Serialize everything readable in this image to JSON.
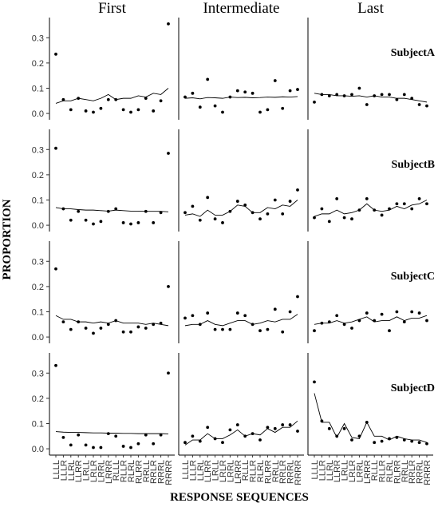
{
  "chart_data": {
    "type": "line",
    "xlabel": "RESPONSE SEQUENCES",
    "ylabel": "PROPORTION",
    "stages": [
      "First",
      "Intermediate",
      "Last"
    ],
    "categories": [
      "LLLL",
      "LLLR",
      "LLRL",
      "LLRR",
      "LRLL",
      "LRLR",
      "LRRL",
      "LRRR",
      "RLLL",
      "RLLR",
      "RLRL",
      "RLRR",
      "RRLL",
      "RRLR",
      "RRRL",
      "RRRR"
    ],
    "ylim": [
      -0.025,
      0.38
    ],
    "yticks": [
      {
        "value": 0,
        "label": "0.0"
      },
      0.1,
      0.2,
      0.3
    ],
    "point_color": "#000000",
    "line_color": "#000000",
    "subjects": [
      {
        "name": "SubjectA",
        "stages": [
          {
            "observed": [
              0.235,
              0.055,
              0.015,
              0.06,
              0.01,
              0.005,
              0.02,
              0.055,
              0.055,
              0.015,
              0.005,
              0.015,
              0.06,
              0.01,
              0.05,
              0.355
            ],
            "predicted": [
              0.04,
              0.05,
              0.05,
              0.06,
              0.055,
              0.05,
              0.06,
              0.075,
              0.055,
              0.06,
              0.06,
              0.07,
              0.065,
              0.08,
              0.075,
              0.1
            ]
          },
          {
            "observed": [
              0.065,
              0.08,
              0.025,
              0.135,
              0.03,
              0.005,
              0.065,
              0.09,
              0.085,
              0.08,
              0.005,
              0.015,
              0.13,
              0.02,
              0.09,
              0.095
            ],
            "predicted": [
              0.06,
              0.062,
              0.058,
              0.063,
              0.062,
              0.06,
              0.065,
              0.063,
              0.064,
              0.062,
              0.063,
              0.065,
              0.064,
              0.066,
              0.065,
              0.067
            ]
          },
          {
            "observed": [
              0.045,
              0.075,
              0.07,
              0.075,
              0.07,
              0.075,
              0.1,
              0.035,
              0.07,
              0.075,
              0.075,
              0.055,
              0.075,
              0.06,
              0.035,
              0.03
            ],
            "predicted": [
              0.08,
              0.075,
              0.075,
              0.07,
              0.07,
              0.068,
              0.07,
              0.065,
              0.07,
              0.065,
              0.065,
              0.06,
              0.06,
              0.055,
              0.05,
              0.045
            ]
          }
        ]
      },
      {
        "name": "SubjectB",
        "stages": [
          {
            "observed": [
              0.305,
              0.065,
              0.02,
              0.055,
              0.02,
              0.005,
              0.015,
              0.055,
              0.065,
              0.01,
              0.005,
              0.01,
              0.055,
              0.01,
              0.05,
              0.285
            ],
            "predicted": [
              0.07,
              0.065,
              0.065,
              0.062,
              0.06,
              0.06,
              0.058,
              0.056,
              0.06,
              0.058,
              0.056,
              0.056,
              0.055,
              0.055,
              0.055,
              0.053
            ]
          },
          {
            "observed": [
              0.05,
              0.075,
              0.02,
              0.11,
              0.025,
              0.01,
              0.055,
              0.095,
              0.08,
              0.05,
              0.025,
              0.045,
              0.1,
              0.045,
              0.095,
              0.14
            ],
            "predicted": [
              0.04,
              0.045,
              0.035,
              0.06,
              0.04,
              0.04,
              0.055,
              0.08,
              0.075,
              0.05,
              0.05,
              0.07,
              0.065,
              0.08,
              0.075,
              0.1
            ]
          },
          {
            "observed": [
              0.03,
              0.065,
              0.015,
              0.105,
              0.03,
              0.025,
              0.06,
              0.105,
              0.06,
              0.04,
              0.065,
              0.085,
              0.085,
              0.065,
              0.105,
              0.085
            ],
            "predicted": [
              0.035,
              0.045,
              0.045,
              0.06,
              0.045,
              0.05,
              0.06,
              0.085,
              0.06,
              0.055,
              0.06,
              0.075,
              0.065,
              0.08,
              0.085,
              0.1
            ]
          }
        ]
      },
      {
        "name": "SubjectC",
        "stages": [
          {
            "observed": [
              0.27,
              0.06,
              0.03,
              0.06,
              0.035,
              0.015,
              0.035,
              0.05,
              0.065,
              0.02,
              0.02,
              0.04,
              0.035,
              0.05,
              0.055,
              0.2
            ],
            "predicted": [
              0.085,
              0.07,
              0.07,
              0.06,
              0.06,
              0.055,
              0.06,
              0.055,
              0.065,
              0.055,
              0.055,
              0.055,
              0.05,
              0.055,
              0.05,
              0.045
            ]
          },
          {
            "observed": [
              0.075,
              0.085,
              0.05,
              0.095,
              0.03,
              0.03,
              0.03,
              0.095,
              0.085,
              0.05,
              0.025,
              0.03,
              0.11,
              0.02,
              0.1,
              0.16
            ],
            "predicted": [
              0.045,
              0.05,
              0.05,
              0.065,
              0.05,
              0.045,
              0.055,
              0.065,
              0.065,
              0.05,
              0.055,
              0.065,
              0.06,
              0.07,
              0.07,
              0.09
            ]
          },
          {
            "observed": [
              0.025,
              0.055,
              0.06,
              0.085,
              0.05,
              0.035,
              0.065,
              0.095,
              0.065,
              0.09,
              0.025,
              0.1,
              0.06,
              0.1,
              0.095,
              0.065
            ],
            "predicted": [
              0.05,
              0.055,
              0.055,
              0.065,
              0.055,
              0.06,
              0.07,
              0.08,
              0.06,
              0.065,
              0.065,
              0.08,
              0.065,
              0.075,
              0.075,
              0.085
            ]
          }
        ]
      },
      {
        "name": "SubjectD",
        "stages": [
          {
            "observed": [
              0.33,
              0.045,
              0.015,
              0.055,
              0.015,
              0.005,
              0.005,
              0.06,
              0.05,
              0.01,
              0.005,
              0.02,
              0.055,
              0.02,
              0.055,
              0.3
            ],
            "predicted": [
              0.068,
              0.066,
              0.065,
              0.065,
              0.064,
              0.063,
              0.063,
              0.062,
              0.062,
              0.061,
              0.061,
              0.06,
              0.06,
              0.06,
              0.06,
              0.059
            ]
          },
          {
            "observed": [
              0.025,
              0.05,
              0.03,
              0.085,
              0.04,
              0.025,
              0.075,
              0.095,
              0.05,
              0.06,
              0.035,
              0.085,
              0.08,
              0.095,
              0.095,
              0.07
            ],
            "predicted": [
              0.015,
              0.035,
              0.035,
              0.06,
              0.04,
              0.04,
              0.055,
              0.075,
              0.05,
              0.06,
              0.055,
              0.08,
              0.065,
              0.085,
              0.085,
              0.11
            ]
          },
          {
            "observed": [
              0.265,
              0.11,
              0.08,
              0.05,
              0.08,
              0.035,
              0.05,
              0.105,
              0.025,
              0.03,
              0.04,
              0.045,
              0.035,
              0.03,
              0.025,
              0.02
            ],
            "predicted": [
              0.22,
              0.105,
              0.105,
              0.045,
              0.1,
              0.045,
              0.04,
              0.105,
              0.05,
              0.05,
              0.035,
              0.05,
              0.04,
              0.035,
              0.035,
              0.025
            ]
          }
        ]
      }
    ]
  }
}
